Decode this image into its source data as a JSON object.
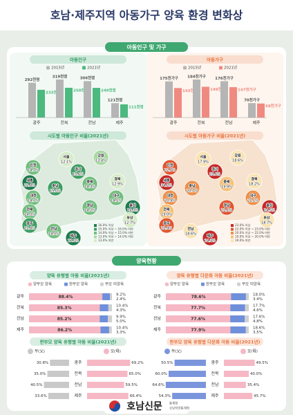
{
  "header": {
    "title": "호남·제주지역 아동가구 양육 환경 변화상"
  },
  "sections": [
    "아동인구 및 가구",
    "양육현황"
  ],
  "chart_data": [
    {
      "type": "bar",
      "title": "아동인구",
      "categories": [
        "광주",
        "전북",
        "전남",
        "제주"
      ],
      "series": [
        {
          "name": "2015년",
          "color": "#b5b5b5",
          "values": [
            292,
            319,
            306,
            121
          ],
          "value_labels": [
            "292천명",
            "319천명",
            "306천명",
            "121천명"
          ]
        },
        {
          "name": "2021년",
          "color": "#4cb97f",
          "values": [
            233,
            250,
            249,
            111
          ],
          "value_labels": [
            "233천명",
            "250천명",
            "249천명",
            "111천명"
          ]
        }
      ]
    },
    {
      "type": "bar",
      "title": "아동가구",
      "categories": [
        "광주",
        "전북",
        "전남",
        "제주"
      ],
      "series": [
        {
          "name": "2015년",
          "color": "#b5b5b5",
          "values": [
            175,
            184,
            176,
            70
          ],
          "value_labels": [
            "175천가구",
            "184천가구",
            "176천가구",
            "70천가구"
          ]
        },
        {
          "name": "2021년",
          "color": "#f08a80",
          "values": [
            143,
            149,
            147,
            68
          ],
          "value_labels": [
            "143천가구",
            "149천가구",
            "147천가구",
            "68천가구"
          ]
        }
      ]
    },
    {
      "type": "map",
      "title": "시도별 아동인구 비율(2021년)",
      "regions": [
        "서울",
        "강원",
        "인천",
        "경기",
        "세종",
        "충북",
        "충남",
        "대전",
        "경북",
        "대구",
        "전북",
        "경남",
        "울산",
        "부산",
        "광주",
        "전남",
        "제주"
      ],
      "values": [
        12.1,
        13.4,
        14.7,
        15.6,
        22.8,
        14.3,
        15.0,
        14.7,
        12.9,
        14.1,
        14.0,
        14.2,
        16.0,
        12.7,
        15.8,
        14.0,
        17.0
      ],
      "value_labels": [
        "12.1%",
        "13.4%",
        "14.7%",
        "15.6%",
        "22.8%",
        "14.3%",
        "15.0%",
        "14.7%",
        "12.9%",
        "14.1%",
        "14.0%",
        "14.2%",
        "16.0%",
        "12.7%",
        "15.8%",
        "14.0%",
        "17.0%"
      ],
      "colors": [
        "#d6ecc8",
        "#a8d9a2",
        "#72bf7e",
        "#3f9e63",
        "#1f7a4d",
        "#72bf7e",
        "#3f9e63",
        "#72bf7e",
        "#d6ecc8",
        "#72bf7e",
        "#72bf7e",
        "#72bf7e",
        "#1f7a4d",
        "#d6ecc8",
        "#3f9e63",
        "#72bf7e",
        "#1f7a4d"
      ],
      "legend": [
        {
          "label": "16.0% 이상",
          "color": "#1f7a4d"
        },
        {
          "label": "15.0% 이상 ~ 16.0% 미만",
          "color": "#3f9e63"
        },
        {
          "label": "14.0% 이상 ~ 15.0% 미만",
          "color": "#72bf7e"
        },
        {
          "label": "13.0% 이상 ~ 14.0% 미만",
          "color": "#a8d9a2"
        },
        {
          "label": "13.0% 미만",
          "color": "#d6ecc8"
        }
      ]
    },
    {
      "type": "map",
      "title": "시도별 아동가구 비율(2021년)",
      "regions": [
        "서울",
        "강원",
        "인천",
        "경기",
        "세종",
        "충북",
        "충남",
        "대전",
        "경북",
        "대구",
        "전북",
        "경남",
        "울산",
        "부산",
        "광주",
        "전남",
        "제주"
      ],
      "values": [
        17.9,
        18.6,
        22.7,
        23.6,
        34.2,
        19.9,
        20.7,
        20.9,
        18.2,
        21.1,
        19.0,
        22.1,
        24.5,
        18.7,
        22.9,
        18.6,
        24.3
      ],
      "value_labels": [
        "17.9%",
        "18.6%",
        "22.7%",
        "23.6%",
        "34.2%",
        "19.9%",
        "20.7%",
        "20.9%",
        "18.2%",
        "21.1%",
        "19.0%",
        "22.1%",
        "24.5%",
        "18.7%",
        "22.9%",
        "18.6%",
        "24.3%"
      ],
      "colors": [
        "#fbe3b0",
        "#fbe3b0",
        "#e2552f",
        "#c62828",
        "#c62828",
        "#f6c27a",
        "#f0904a",
        "#f0904a",
        "#fbe3b0",
        "#f0904a",
        "#f6c27a",
        "#e2552f",
        "#c62828",
        "#fbe3b0",
        "#e2552f",
        "#fbe3b0",
        "#c62828"
      ],
      "legend": [
        {
          "label": "23.0% 이상",
          "color": "#c62828"
        },
        {
          "label": "22.0% 이상 ~ 23.0% 미만",
          "color": "#e2552f"
        },
        {
          "label": "20.0% 이상 ~ 22.0% 미만",
          "color": "#f0904a"
        },
        {
          "label": "19.0% 이상 ~ 20.0% 미만",
          "color": "#f6c27a"
        },
        {
          "label": "19.0% 미만",
          "color": "#fbe3b0"
        }
      ]
    },
    {
      "type": "stacked",
      "title": "양육 유형별 아동 비율(2021년)",
      "categories": [
        "광주",
        "전북",
        "전남",
        "제주"
      ],
      "series": [
        {
          "name": "양부모 양육",
          "color": "#f5b8c4",
          "values": [
            88.4,
            85.3,
            85.2,
            86.2
          ],
          "value_labels": [
            "88.4%",
            "85.3%",
            "85.2%",
            "86.2%"
          ]
        },
        {
          "name": "한부모 양육",
          "color": "#6f8fdb",
          "values": [
            9.2,
            10.4,
            9.9,
            10.4
          ],
          "value_labels": [
            "9.2%",
            "10.4%",
            "9.9%",
            "10.4%"
          ]
        },
        {
          "name": "부모 미양육",
          "color": "#d0d0d0",
          "values": [
            2.4,
            4.3,
            5.0,
            3.3
          ],
          "value_labels": [
            "2.4%",
            "4.3%",
            "5.0%",
            "3.3%"
          ]
        }
      ]
    },
    {
      "type": "stacked",
      "title": "양육 유형별 다문화 아동 비율(2021년)",
      "categories": [
        "광주",
        "전북",
        "전남",
        "제주"
      ],
      "series": [
        {
          "name": "양부모 양육",
          "color": "#f5b8c4",
          "values": [
            78.6,
            77.7,
            77.6,
            77.9
          ],
          "value_labels": [
            "78.6%",
            "77.7%",
            "77.6%",
            "77.9%"
          ]
        },
        {
          "name": "한부모 양육",
          "color": "#6f8fdb",
          "values": [
            18.0,
            17.7,
            17.6,
            18.6
          ],
          "value_labels": [
            "18.0%",
            "17.7%",
            "17.6%",
            "18.6%"
          ]
        },
        {
          "name": "부모 미양육",
          "color": "#d0d0d0",
          "values": [
            3.4,
            4.6,
            4.8,
            3.5
          ],
          "value_labels": [
            "3.4%",
            "4.6%",
            "4.8%",
            "3.5%"
          ]
        }
      ]
    },
    {
      "type": "butterfly",
      "title": "한부모 양육 유형별 아동 비율(2021년)",
      "categories": [
        "광주",
        "전북",
        "전남",
        "제주"
      ],
      "series": [
        {
          "name": "부(父)",
          "color": "#c9c9c9",
          "values": [
            30.8,
            35.0,
            40.5,
            33.6
          ],
          "value_labels": [
            "30.8%",
            "35.0%",
            "40.5%",
            "33.6%"
          ]
        },
        {
          "name": "모(母)",
          "color": "#f5b8c4",
          "values": [
            69.2,
            65.0,
            59.5,
            66.4
          ],
          "value_labels": [
            "69.2%",
            "65.0%",
            "59.5%",
            "66.4%"
          ]
        }
      ]
    },
    {
      "type": "butterfly",
      "title": "한부모 양육 유형별 다문화 아동 비율(2021년)",
      "categories": [
        "광주",
        "전북",
        "전남",
        "제주"
      ],
      "series": [
        {
          "name": "부(父)",
          "color": "#7b95dd",
          "values": [
            50.5,
            60.0,
            64.6,
            54.3
          ],
          "value_labels": [
            "50.5%",
            "60.0%",
            "64.6%",
            "54.3%"
          ]
        },
        {
          "name": "모(母)",
          "color": "#f5b8c4",
          "values": [
            49.5,
            40.0,
            35.4,
            45.7
          ],
          "value_labels": [
            "49.5%",
            "40.0%",
            "35.4%",
            "45.7%"
          ]
        }
      ]
    }
  ],
  "footer": {
    "logo": "호남신문",
    "agency_top": "통계청",
    "agency": "호남지방통계청"
  }
}
